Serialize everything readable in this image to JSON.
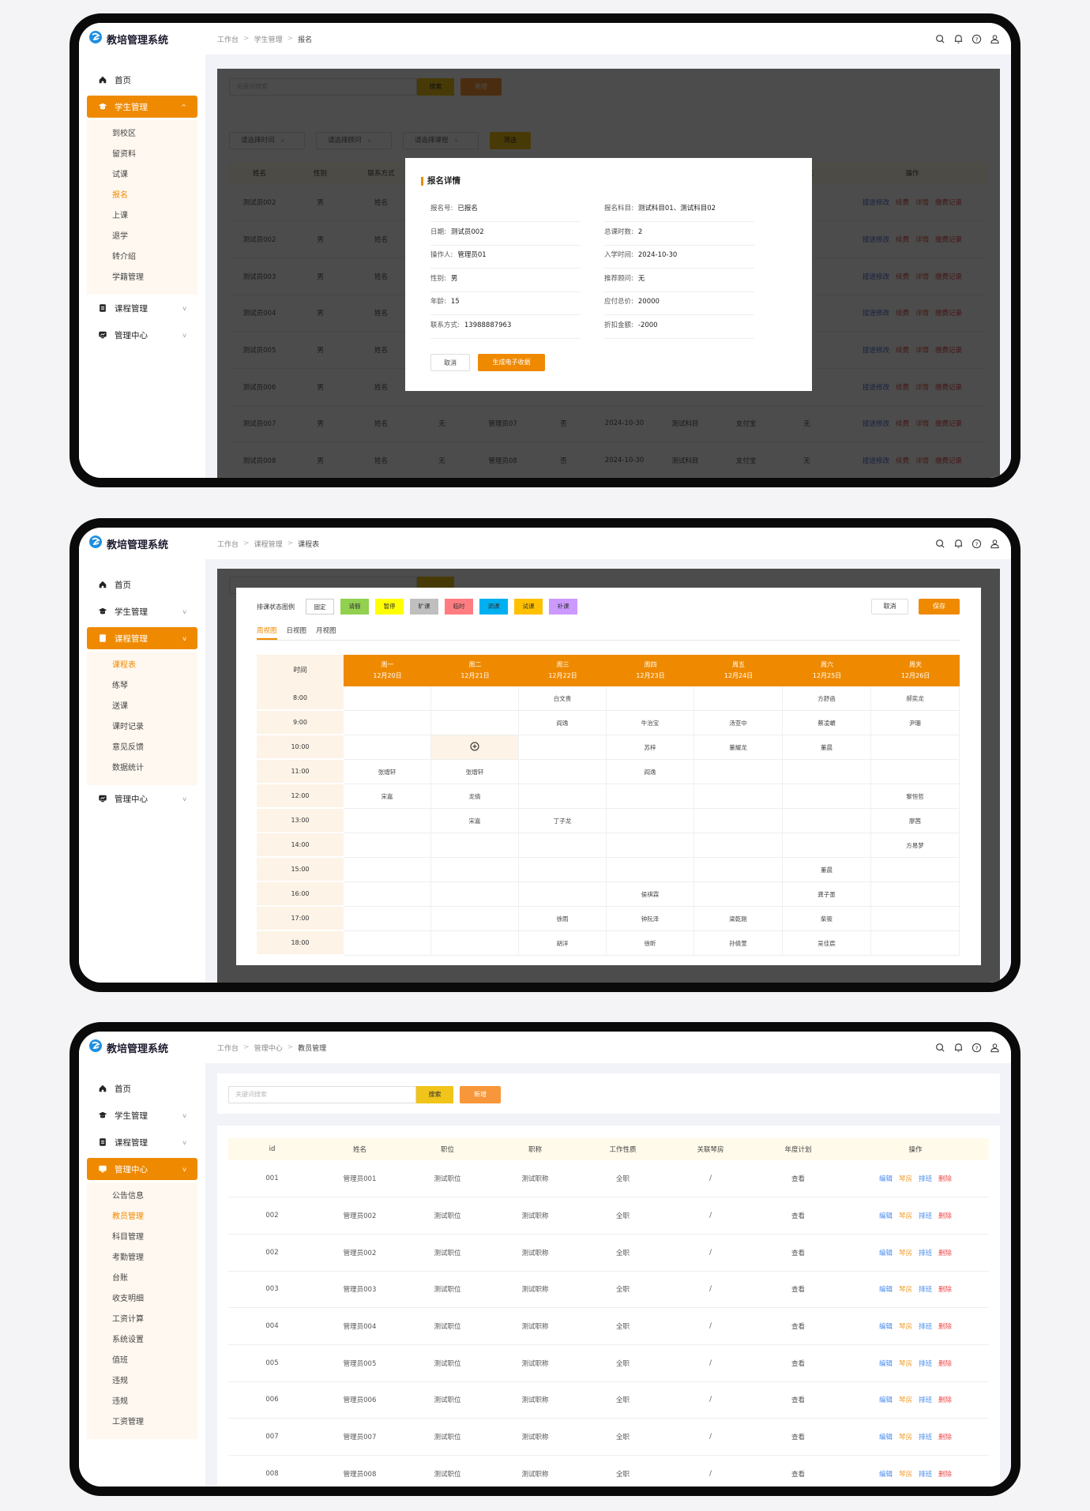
{
  "app": {
    "title": "教培管理系统",
    "header_icons": [
      "search-icon",
      "bell-icon",
      "help-icon",
      "user-icon"
    ]
  },
  "colors": {
    "accent": "#ef8a00",
    "search_button": "#f0c419",
    "add_button": "#f7963a",
    "link_blue": "#4a7fe0",
    "link_red": "#e84848",
    "link_orange": "#f0a030",
    "table_header": "#fffaea",
    "submenu_bg": "#fff8f0"
  },
  "screens": [
    {
      "breadcrumb": [
        "工作台",
        "学生管理",
        "报名"
      ],
      "sidebar": [
        {
          "label": "首页",
          "icon": "home-icon"
        },
        {
          "label": "学生管理",
          "icon": "graduation-cap-icon",
          "active": true,
          "children": [
            "到校区",
            "留资料",
            "试课",
            "报名",
            "上课",
            "退学",
            "转介绍",
            "学籍管理"
          ],
          "selected": 3
        },
        {
          "label": "课程管理",
          "icon": "book-icon"
        },
        {
          "label": "管理中心",
          "icon": "dashboard-icon"
        }
      ],
      "search": {
        "placeholder": "关键词搜索",
        "search_label": "搜索",
        "add_label": "新增"
      },
      "filters": [
        "请选择时间",
        "请选择顾问",
        "请选择课程"
      ],
      "filter_button": "筛选",
      "table": {
        "headers": [
          "姓名",
          "性别",
          "联系方式",
          "",
          "",
          "",
          "",
          "",
          "",
          "备注",
          "操作"
        ],
        "rows": [
          [
            "测试员002",
            "男",
            "姓名",
            "",
            "",
            "",
            "",
            "",
            "",
            ""
          ],
          [
            "测试员002",
            "男",
            "姓名",
            "",
            "",
            "",
            "",
            "",
            "",
            ""
          ],
          [
            "测试员003",
            "男",
            "姓名",
            "",
            "",
            "",
            "",
            "",
            "",
            ""
          ],
          [
            "测试员004",
            "男",
            "姓名",
            "",
            "",
            "",
            "",
            "",
            "",
            ""
          ],
          [
            "测试员005",
            "男",
            "姓名",
            "",
            "",
            "",
            "",
            "",
            "",
            ""
          ],
          [
            "测试员006",
            "男",
            "姓名",
            "",
            "",
            "",
            "",
            "",
            "",
            ""
          ],
          [
            "测试员007",
            "男",
            "姓名",
            "无",
            "管理员07",
            "否",
            "2024-10-30",
            "测试科目",
            "支付宝",
            "无"
          ],
          [
            "测试员008",
            "男",
            "姓名",
            "无",
            "管理员08",
            "否",
            "2024-10-30",
            "测试科目",
            "支付宝",
            "无"
          ]
        ],
        "actions": [
          {
            "label": "接送修改",
            "color": "#4a6fd0"
          },
          {
            "label": "续费",
            "color": "#e84848"
          },
          {
            "label": "详情",
            "color": "#e86040"
          },
          {
            "label": "缴费记录",
            "color": "#e84848"
          }
        ]
      },
      "modal": {
        "title": "报名详情",
        "left": [
          {
            "label": "报名号:",
            "value": "已报名"
          },
          {
            "label": "日期:",
            "value": "测试员002"
          },
          {
            "label": "操作人:",
            "value": "管理员01"
          },
          {
            "label": "性别:",
            "value": "男"
          },
          {
            "label": "年龄:",
            "value": "15"
          },
          {
            "label": "联系方式:",
            "value": "13988887963"
          }
        ],
        "right": [
          {
            "label": "报名科目:",
            "value": "测试科目01、测试科目02"
          },
          {
            "label": "总课时数:",
            "value": "2"
          },
          {
            "label": "入学时间:",
            "value": "2024-10-30"
          },
          {
            "label": "推荐顾问:",
            "value": "无"
          },
          {
            "label": "应付总价:",
            "value": "20000"
          },
          {
            "label": "折扣金额:",
            "value": "-2000"
          }
        ],
        "cancel": "取消",
        "confirm": "生成电子收据"
      }
    },
    {
      "breadcrumb": [
        "工作台",
        "课程管理",
        "课程表"
      ],
      "sidebar": [
        {
          "label": "首页",
          "icon": "home-icon"
        },
        {
          "label": "学生管理",
          "icon": "graduation-cap-icon"
        },
        {
          "label": "课程管理",
          "icon": "book-icon",
          "active": true,
          "children": [
            "课程表",
            "练琴",
            "送课",
            "课时记录",
            "意见反馈",
            "数据统计"
          ],
          "selected": 0
        },
        {
          "label": "管理中心",
          "icon": "dashboard-icon"
        }
      ],
      "legend_label": "排课状态图例",
      "legend": [
        {
          "label": "固定",
          "color": "#ffffff"
        },
        {
          "label": "请假",
          "color": "#92d050"
        },
        {
          "label": "暂停",
          "color": "#ffff00"
        },
        {
          "label": "旷课",
          "color": "#bfbfbf"
        },
        {
          "label": "临时",
          "color": "#ff7c80"
        },
        {
          "label": "调课",
          "color": "#00b0f0"
        },
        {
          "label": "试课",
          "color": "#ffc000"
        },
        {
          "label": "补课",
          "color": "#cc99ff"
        }
      ],
      "cancel": "取消",
      "save": "保存",
      "tabs": [
        "周视图",
        "日视图",
        "月视图"
      ],
      "active_tab": 0,
      "time_header": "时间",
      "days": [
        {
          "day": "周一",
          "date": "12月20日"
        },
        {
          "day": "周二",
          "date": "12月21日"
        },
        {
          "day": "周三",
          "date": "12月22日"
        },
        {
          "day": "周四",
          "date": "12月23日"
        },
        {
          "day": "周五",
          "date": "12月24日"
        },
        {
          "day": "周六",
          "date": "12月25日"
        },
        {
          "day": "周天",
          "date": "12月26日"
        }
      ],
      "schedule": [
        {
          "time": "8:00",
          "cells": [
            "",
            "",
            "白文贵",
            "",
            "",
            "方舒函",
            "郝奕龙"
          ]
        },
        {
          "time": "9:00",
          "cells": [
            "",
            "",
            "阎逸",
            "牛治宝",
            "汤亚中",
            "蔡凌頔",
            "尹珊"
          ]
        },
        {
          "time": "10:00",
          "cells": [
            "",
            "+",
            "",
            "苏梓",
            "董耀龙",
            "董晨",
            ""
          ]
        },
        {
          "time": "11:00",
          "cells": [
            "张熠轩",
            "张熠轩",
            "",
            "阎逸",
            "",
            "",
            ""
          ]
        },
        {
          "time": "12:00",
          "cells": [
            "宋嘉",
            "龙倩",
            "",
            "",
            "",
            "",
            "黎恒哲"
          ]
        },
        {
          "time": "13:00",
          "cells": [
            "",
            "宋嘉",
            "丁子龙",
            "",
            "",
            "",
            "廖茜"
          ]
        },
        {
          "time": "14:00",
          "cells": [
            "",
            "",
            "",
            "",
            "",
            "",
            "方易梦"
          ]
        },
        {
          "time": "15:00",
          "cells": [
            "",
            "",
            "",
            "",
            "",
            "董晨",
            ""
          ]
        },
        {
          "time": "16:00",
          "cells": [
            "",
            "",
            "",
            "侯祺霖",
            "",
            "龚子墨",
            ""
          ]
        },
        {
          "time": "17:00",
          "cells": [
            "",
            "",
            "徐雨",
            "钟阮泽",
            "梁乾刚",
            "柴筱",
            ""
          ]
        },
        {
          "time": "18:00",
          "cells": [
            "",
            "",
            "胡洋",
            "徐昕",
            "孙倩萱",
            "吴佳宸",
            ""
          ]
        }
      ]
    },
    {
      "breadcrumb": [
        "工作台",
        "管理中心",
        "教员管理"
      ],
      "sidebar": [
        {
          "label": "首页",
          "icon": "home-icon"
        },
        {
          "label": "学生管理",
          "icon": "graduation-cap-icon"
        },
        {
          "label": "课程管理",
          "icon": "book-icon"
        },
        {
          "label": "管理中心",
          "icon": "dashboard-icon",
          "active": true,
          "children": [
            "公告信息",
            "教员管理",
            "科目管理",
            "考勤管理",
            "台账",
            "收支明细",
            "工资计算",
            "系统设置",
            "值班",
            "违规",
            "违规",
            "工资管理"
          ],
          "selected": 1
        }
      ],
      "search": {
        "placeholder": "关键词搜索",
        "search_label": "搜索",
        "add_label": "新增"
      },
      "table": {
        "headers": [
          "id",
          "姓名",
          "职位",
          "职称",
          "工作性质",
          "关联琴房",
          "年度计划",
          "操作"
        ],
        "rows": [
          [
            "001",
            "管理员001",
            "测试职位",
            "测试职称",
            "全职",
            "/",
            "查看"
          ],
          [
            "002",
            "管理员002",
            "测试职位",
            "测试职称",
            "全职",
            "/",
            "查看"
          ],
          [
            "002",
            "管理员002",
            "测试职位",
            "测试职称",
            "全职",
            "/",
            "查看"
          ],
          [
            "003",
            "管理员003",
            "测试职位",
            "测试职称",
            "全职",
            "/",
            "查看"
          ],
          [
            "004",
            "管理员004",
            "测试职位",
            "测试职称",
            "全职",
            "/",
            "查看"
          ],
          [
            "005",
            "管理员005",
            "测试职位",
            "测试职称",
            "全职",
            "/",
            "查看"
          ],
          [
            "006",
            "管理员006",
            "测试职位",
            "测试职称",
            "全职",
            "/",
            "查看"
          ],
          [
            "007",
            "管理员007",
            "测试职位",
            "测试职称",
            "全职",
            "/",
            "查看"
          ],
          [
            "008",
            "管理员008",
            "测试职位",
            "测试职称",
            "全职",
            "/",
            "查看"
          ]
        ],
        "actions": [
          {
            "label": "编辑",
            "color": "#4a8cf0"
          },
          {
            "label": "琴房",
            "color": "#f0a030"
          },
          {
            "label": "排班",
            "color": "#4a8cf0"
          },
          {
            "label": "删除",
            "color": "#f04a4a"
          }
        ]
      }
    }
  ]
}
